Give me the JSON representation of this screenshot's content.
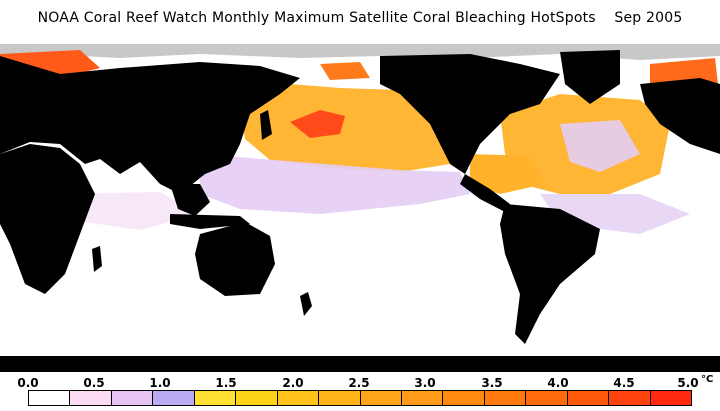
{
  "title": "NOAA Coral Reef Watch Monthly Maximum Satellite Coral Bleaching HotSpots    Sep 2005",
  "legend": {
    "ticks": [
      "0.0",
      "0.5",
      "1.0",
      "1.5",
      "2.0",
      "2.5",
      "3.0",
      "3.5",
      "4.0",
      "4.5",
      "5.0"
    ],
    "unit": "°C",
    "colors": [
      "#ffffff",
      "#fbdcf2",
      "#e7c4f2",
      "#b9aaf3",
      "#ffe033",
      "#ffd21a",
      "#ffc21a",
      "#ffb51a",
      "#ffa51a",
      "#ff9a1a",
      "#ff8a12",
      "#ff7a0e",
      "#ff6a0c",
      "#ff5a0a",
      "#ff4410",
      "#ff2a10"
    ]
  },
  "map_colors": {
    "land": "#000000",
    "ice": "#c8c8c8",
    "ocean": "#ffffff",
    "low_hotspot": "#e4cdf4",
    "mid_hotspot": "#ffb22a",
    "high_hotspot": "#ff4a1a"
  }
}
